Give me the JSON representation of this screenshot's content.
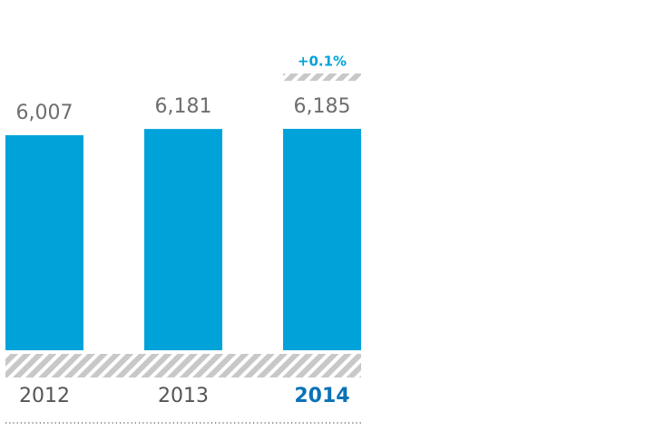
{
  "chart_data": {
    "type": "bar",
    "categories": [
      "2012",
      "2013",
      "2014"
    ],
    "values": [
      6007,
      6181,
      6185
    ],
    "value_labels": [
      "6,007",
      "6,181",
      "6,185"
    ],
    "color": "#00a3d9",
    "label_color": "#6d6e70",
    "highlight_index": 2,
    "highlight_color": "#0a72b8",
    "ylim": [
      0,
      6200
    ],
    "annotation": {
      "text": "+0.1%",
      "color": "#00a3d9"
    }
  }
}
